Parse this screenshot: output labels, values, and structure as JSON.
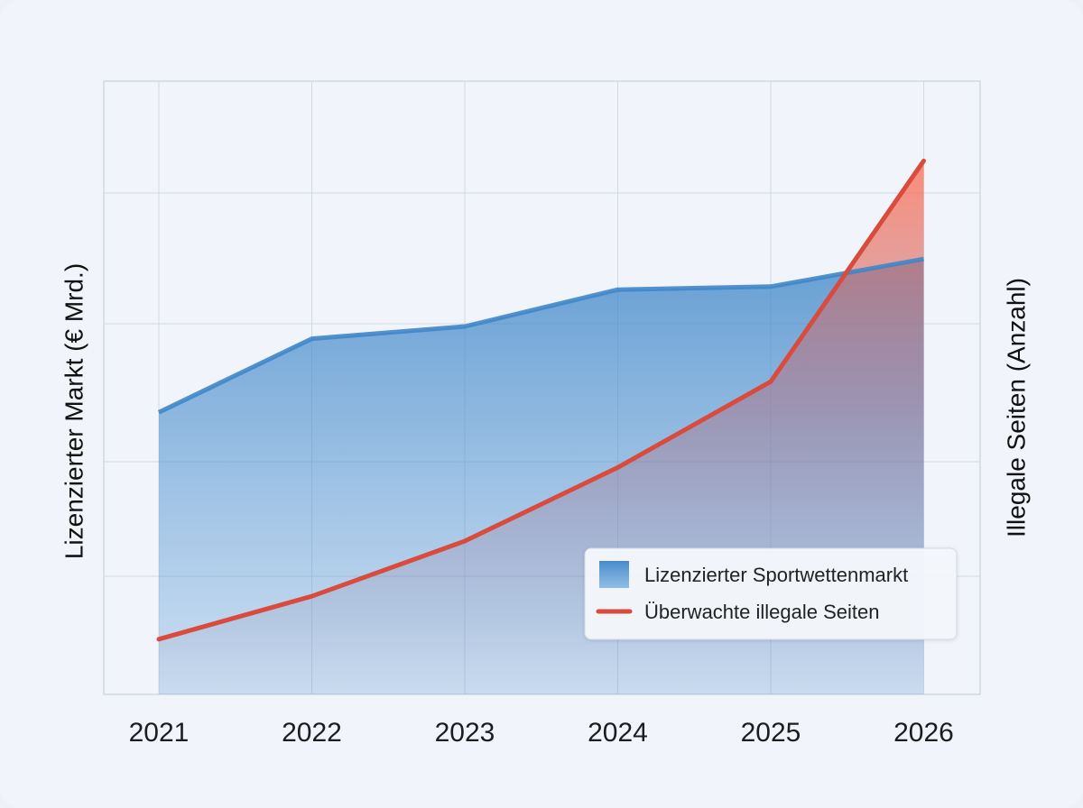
{
  "chart_data": {
    "type": "area",
    "title": "",
    "categories": [
      "2021",
      "2022",
      "2023",
      "2024",
      "2025",
      "2026"
    ],
    "ylabel_left": "Lizenzierter Markt (€ Mrd.)",
    "ylabel_right": "Illegale Seiten (Anzahl)",
    "ylim": [
      0,
      100
    ],
    "grid": true,
    "legend_position": "bottom-right",
    "series": [
      {
        "name": "Lizenzierter Sportwettenmarkt",
        "kind": "area",
        "axis": "left",
        "color": "#3f86c8",
        "values": [
          46,
          58,
          60,
          66,
          66.5,
          71
        ]
      },
      {
        "name": "Überwachte illegale Seiten",
        "kind": "line",
        "axis": "right",
        "color": "#d94b3d",
        "values": [
          9,
          16,
          25,
          37,
          51,
          87
        ]
      }
    ]
  }
}
